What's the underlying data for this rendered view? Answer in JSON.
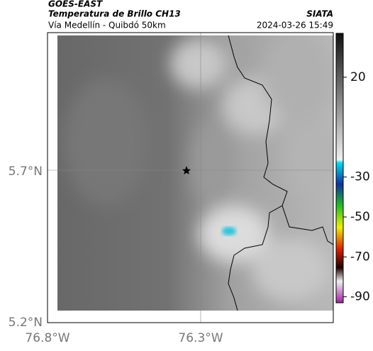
{
  "header": {
    "title": "GOES-EAST",
    "subtitle": "Temperatura de Brillo CH13",
    "location": "Vía Medellín - Quibdó 50km",
    "source": "SIATA",
    "datetime": "2024-03-26 15:49"
  },
  "map": {
    "lat_labels": [
      "5.7°N",
      "5.2°N"
    ],
    "lon_labels": [
      "76.8°W",
      "76.3°W"
    ]
  },
  "colorbar": {
    "lim": [
      -93,
      42
    ],
    "ticks": [
      20,
      -30,
      -50,
      -70,
      -90
    ]
  }
}
